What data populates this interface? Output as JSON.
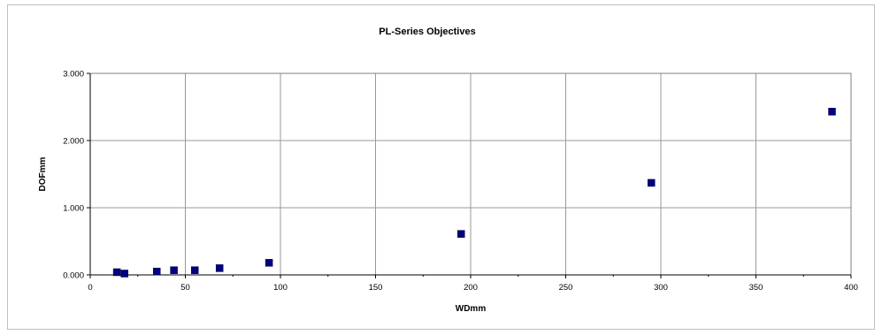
{
  "chart_data": {
    "type": "scatter",
    "title": "PL-Series Objectives",
    "xlabel": "WDmm",
    "ylabel": "DOFmm",
    "xlim": [
      0,
      400
    ],
    "ylim": [
      0,
      3
    ],
    "x_ticks": [
      0,
      50,
      100,
      150,
      200,
      250,
      300,
      350,
      400
    ],
    "x_tick_labels": [
      "0",
      "50",
      "100",
      "150",
      "200",
      "250",
      "300",
      "350",
      "400"
    ],
    "y_ticks": [
      0,
      1,
      2,
      3
    ],
    "y_tick_labels": [
      "0.000",
      "1.000",
      "2.000",
      "3.000"
    ],
    "grid": true,
    "legend": "none",
    "series": [
      {
        "marker": "square",
        "color": "#000080",
        "points": [
          {
            "x": 14,
            "y": 0.04
          },
          {
            "x": 18,
            "y": 0.02
          },
          {
            "x": 35,
            "y": 0.05
          },
          {
            "x": 44,
            "y": 0.07
          },
          {
            "x": 55,
            "y": 0.07
          },
          {
            "x": 68,
            "y": 0.1
          },
          {
            "x": 94,
            "y": 0.18
          },
          {
            "x": 195,
            "y": 0.61
          },
          {
            "x": 295,
            "y": 1.37
          },
          {
            "x": 390,
            "y": 2.43
          }
        ]
      }
    ]
  }
}
